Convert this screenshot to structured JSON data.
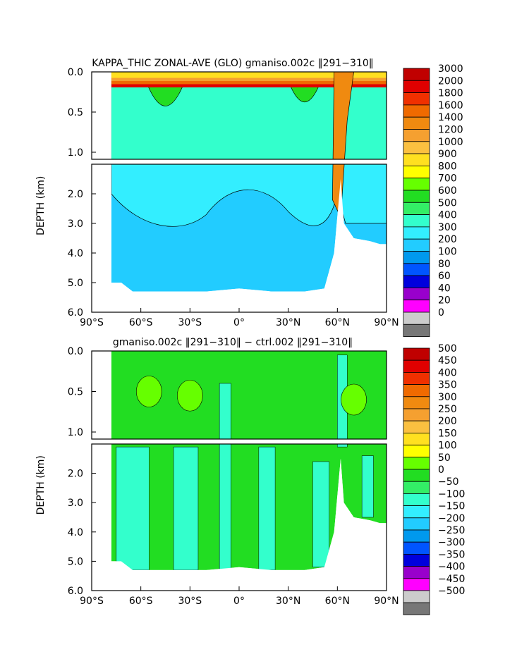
{
  "chart_data": [
    {
      "type": "heatmap",
      "title": "KAPPA_THIC ZONAL-AVE (GLO) gmaniso.002c ‖291−310‖",
      "ylabel": "DEPTH (km)",
      "xlabel": "",
      "x_ticks": [
        "90°S",
        "60°S",
        "30°S",
        "0°",
        "30°N",
        "60°N",
        "90°N"
      ],
      "x_tick_values": [
        -90,
        -60,
        -30,
        0,
        30,
        60,
        90
      ],
      "xlim": [
        -90,
        90
      ],
      "y_ticks_upper": [
        "0.0",
        "0.5",
        "1.0"
      ],
      "y_tick_values_upper": [
        0.0,
        0.5,
        1.0
      ],
      "y_ticks_lower": [
        "2.0",
        "3.0",
        "4.0",
        "5.0",
        "6.0"
      ],
      "y_tick_values_lower": [
        2.0,
        3.0,
        4.0,
        5.0,
        6.0
      ],
      "ylim": [
        0,
        6
      ],
      "colorbar": {
        "labels": [
          "3000",
          "2000",
          "1800",
          "1600",
          "1400",
          "1200",
          "1000",
          "900",
          "800",
          "700",
          "600",
          "500",
          "400",
          "300",
          "200",
          "100",
          "80",
          "60",
          "40",
          "20",
          "0"
        ],
        "colors": [
          "#c00000",
          "#e00000",
          "#f03000",
          "#f06a00",
          "#f08a10",
          "#f5a030",
          "#fbc040",
          "#ffe020",
          "#ffff00",
          "#66ff00",
          "#22dd22",
          "#33ee66",
          "#33ffcc",
          "#33eeff",
          "#22ccff",
          "#0099ee",
          "#0055ff",
          "#0000dd",
          "#9900cc",
          "#ff00ff",
          "#cccccc",
          "#777777"
        ]
      },
      "bands": [
        {
          "lat": -75,
          "d": [
            0.02,
            0.05,
            0.1,
            0.15,
            0.8
          ]
        },
        {
          "lat": -45,
          "d": [
            0.03,
            0.07,
            0.12,
            0.35,
            1.0
          ]
        },
        {
          "lat": -20,
          "d": [
            0.02,
            0.04,
            0.08,
            0.15,
            0.4
          ]
        },
        {
          "lat": 0,
          "d": [
            0.02,
            0.04,
            0.07,
            0.12,
            0.3
          ]
        },
        {
          "lat": 20,
          "d": [
            0.02,
            0.04,
            0.08,
            0.15,
            0.4
          ]
        },
        {
          "lat": 40,
          "d": [
            0.02,
            0.05,
            0.1,
            0.3,
            0.9
          ]
        },
        {
          "lat": 62,
          "d": [
            0.02,
            1.0,
            2.2,
            2.6,
            3.0
          ]
        },
        {
          "lat": 85,
          "d": [
            0.02,
            0.05,
            0.1,
            0.15,
            0.3
          ]
        }
      ]
    },
    {
      "type": "heatmap",
      "title": "gmaniso.002c ‖291−310‖ − ctrl.002 ‖291−310‖",
      "ylabel": "DEPTH (km)",
      "xlabel": "",
      "x_ticks": [
        "90°S",
        "60°S",
        "30°S",
        "0°",
        "30°N",
        "60°N",
        "90°N"
      ],
      "x_tick_values": [
        -90,
        -60,
        -30,
        0,
        30,
        60,
        90
      ],
      "xlim": [
        -90,
        90
      ],
      "y_ticks_upper": [
        "0.0",
        "0.5",
        "1.0"
      ],
      "y_tick_values_upper": [
        0.0,
        0.5,
        1.0
      ],
      "y_ticks_lower": [
        "2.0",
        "3.0",
        "4.0",
        "5.0",
        "6.0"
      ],
      "y_tick_values_lower": [
        2.0,
        3.0,
        4.0,
        5.0,
        6.0
      ],
      "ylim": [
        0,
        6
      ],
      "colorbar": {
        "labels": [
          "500",
          "450",
          "400",
          "350",
          "300",
          "250",
          "200",
          "150",
          "100",
          "50",
          "0",
          "−50",
          "−100",
          "−150",
          "−200",
          "−250",
          "−300",
          "−350",
          "−400",
          "−450",
          "−500"
        ],
        "colors": [
          "#c00000",
          "#e00000",
          "#f03000",
          "#f06a00",
          "#f08a10",
          "#f5a030",
          "#fbc040",
          "#ffe020",
          "#ffff00",
          "#66ff00",
          "#22dd22",
          "#33ee66",
          "#33ffcc",
          "#33eeff",
          "#22ccff",
          "#0099ee",
          "#0055ff",
          "#0000dd",
          "#9900cc",
          "#ff00ff",
          "#cccccc",
          "#777777"
        ]
      }
    }
  ]
}
